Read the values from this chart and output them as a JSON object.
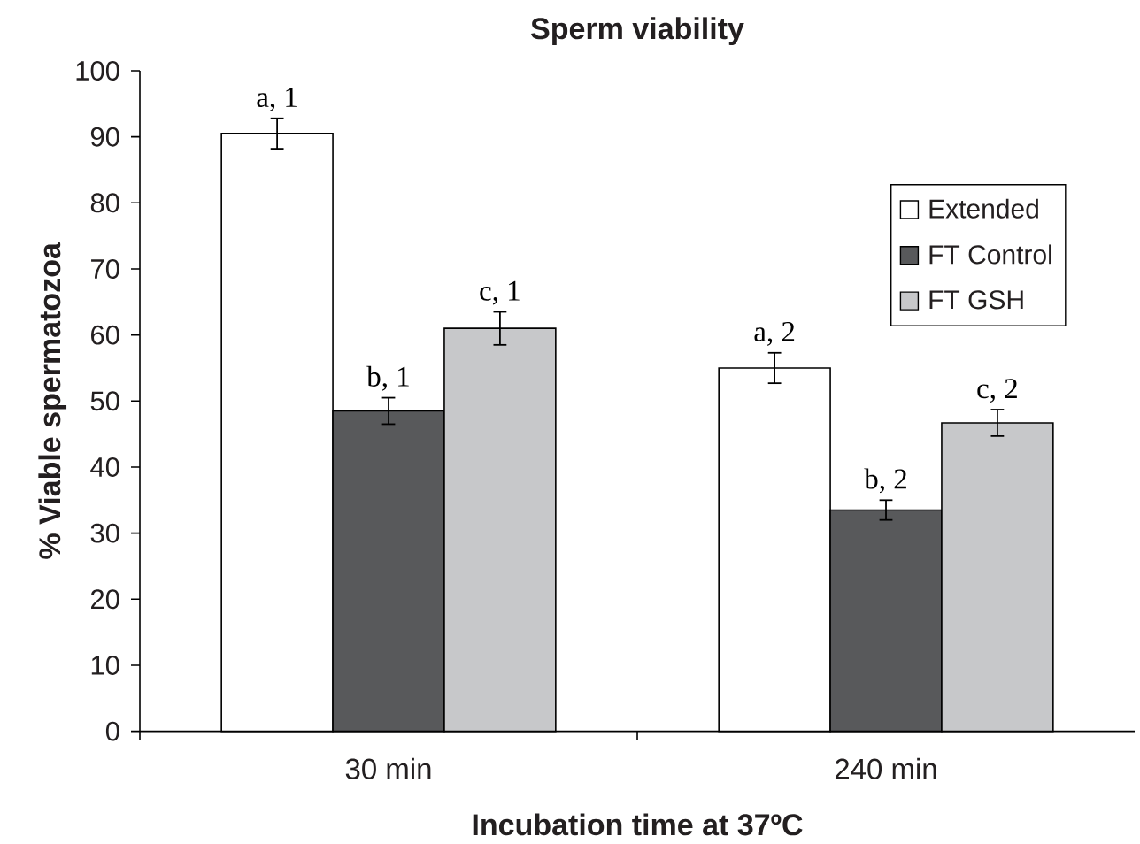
{
  "chart_data": {
    "type": "bar",
    "title": "Sperm viability",
    "xlabel": "Incubation time at 37ºC",
    "ylabel": "% Viable spermatozoa",
    "categories": [
      "30 min",
      "240 min"
    ],
    "series": [
      {
        "name": "Extended",
        "color": "#ffffff",
        "values": [
          90.5,
          55
        ],
        "errors": [
          2.3,
          2.3
        ]
      },
      {
        "name": "FT Control",
        "color": "#58595b",
        "values": [
          48.5,
          33.5
        ],
        "errors": [
          2,
          1.5
        ]
      },
      {
        "name": "FT GSH",
        "color": "#c7c8ca",
        "values": [
          61,
          46.7
        ],
        "errors": [
          2.5,
          2
        ]
      }
    ],
    "annotations": [
      "a, 1",
      "b, 1",
      "c, 1",
      "a, 2",
      "b, 2",
      "c, 2"
    ],
    "ylim": [
      0,
      100
    ],
    "yticks": [
      0,
      10,
      20,
      30,
      40,
      50,
      60,
      70,
      80,
      90,
      100
    ],
    "legend": "top right"
  }
}
